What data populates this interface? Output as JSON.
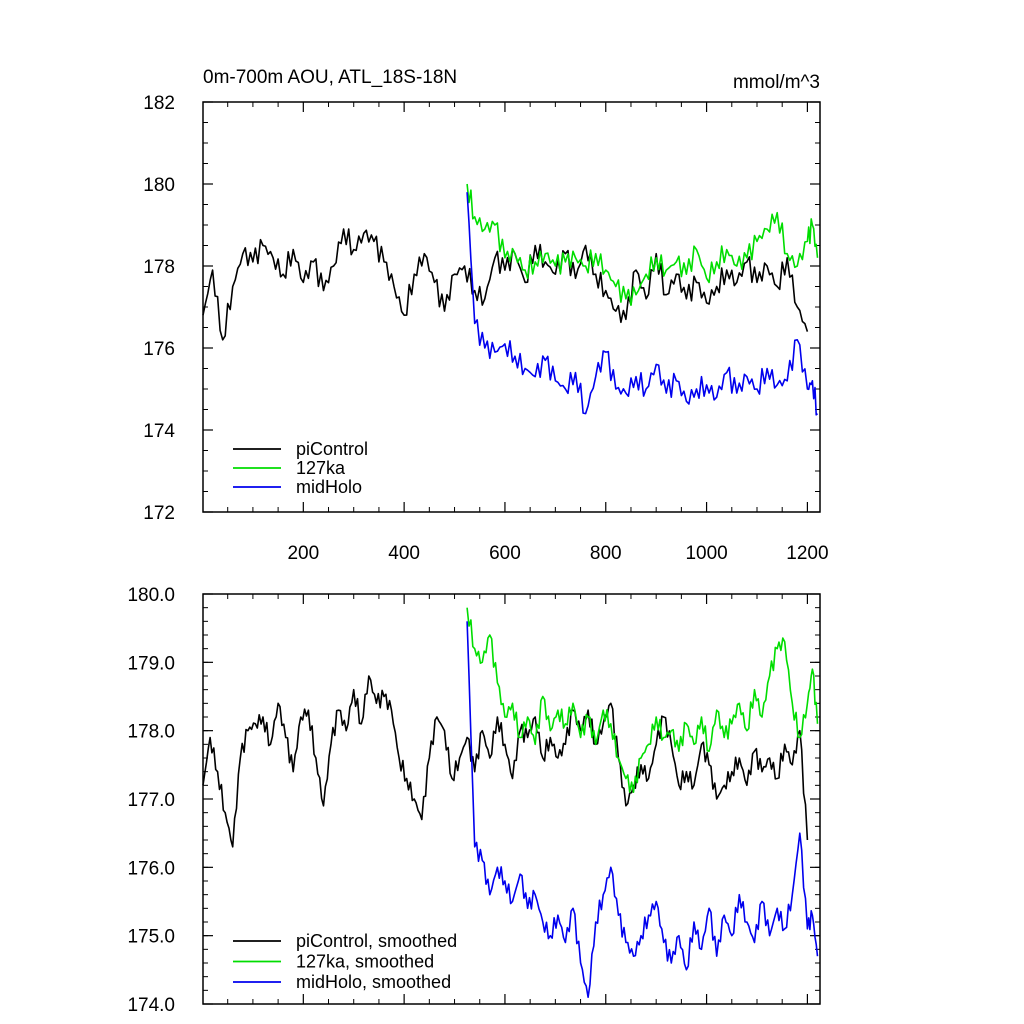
{
  "chart_data": [
    {
      "type": "line",
      "title": "0m-700m AOU, ATL_18S-18N",
      "units": "mmol/m^3",
      "xlabel": "",
      "ylabel": "",
      "xlim": [
        1,
        1225
      ],
      "ylim": [
        172,
        182
      ],
      "x_ticks": [
        200,
        400,
        600,
        800,
        1000,
        1200
      ],
      "x_tick_labels": [
        "200",
        "400",
        "600",
        "800",
        "1000",
        "1200"
      ],
      "y_ticks": [
        172,
        174,
        176,
        178,
        180,
        182
      ],
      "y_tick_labels": [
        "172",
        "174",
        "176",
        "178",
        "180",
        "182"
      ],
      "legend_position": "bottom-left",
      "series": [
        {
          "name": "piControl",
          "color": "#000000",
          "x": [
            1,
            20,
            40,
            60,
            80,
            100,
            120,
            140,
            160,
            180,
            200,
            220,
            240,
            260,
            280,
            300,
            320,
            340,
            360,
            380,
            400,
            420,
            440,
            460,
            480,
            500,
            520,
            540,
            560,
            580,
            600,
            620,
            640,
            660,
            680,
            700,
            720,
            740,
            760,
            780,
            800,
            820,
            840,
            860,
            880,
            900,
            920,
            940,
            960,
            980,
            1000,
            1020,
            1040,
            1060,
            1080,
            1100,
            1120,
            1140,
            1160,
            1180,
            1200
          ],
          "y": [
            176.8,
            177.9,
            176.2,
            177.5,
            178.3,
            178.1,
            178.5,
            178.2,
            177.8,
            178.4,
            177.6,
            178.1,
            177.4,
            178.0,
            178.9,
            178.4,
            178.8,
            178.6,
            178.1,
            177.5,
            176.8,
            177.8,
            178.3,
            177.6,
            176.9,
            177.8,
            178.0,
            177.4,
            177.2,
            178.2,
            177.9,
            178.3,
            177.6,
            178.5,
            178.1,
            177.8,
            178.3,
            177.7,
            178.5,
            177.8,
            177.4,
            176.9,
            176.7,
            177.9,
            177.2,
            178.3,
            177.3,
            177.8,
            177.2,
            177.6,
            177.1,
            177.5,
            177.9,
            177.6,
            178.1,
            177.6,
            178.0,
            177.5,
            178.2,
            177.0,
            176.4
          ]
        },
        {
          "name": "127ka",
          "color": "#00dd00",
          "x": [
            525,
            540,
            560,
            580,
            600,
            620,
            640,
            660,
            680,
            700,
            720,
            740,
            760,
            780,
            800,
            820,
            840,
            860,
            880,
            900,
            920,
            940,
            960,
            980,
            1000,
            1020,
            1040,
            1060,
            1080,
            1100,
            1120,
            1140,
            1160,
            1180,
            1200,
            1210,
            1220
          ],
          "y": [
            180.0,
            179.2,
            178.9,
            179.0,
            178.2,
            178.3,
            177.9,
            178.1,
            178.3,
            178.0,
            178.1,
            178.2,
            178.0,
            178.3,
            177.9,
            177.5,
            177.2,
            177.3,
            177.8,
            178.2,
            177.9,
            178.1,
            177.8,
            178.4,
            177.7,
            178.1,
            178.4,
            178.0,
            178.2,
            178.6,
            178.9,
            179.3,
            178.3,
            178.0,
            178.6,
            179.0,
            178.2
          ]
        },
        {
          "name": "midHolo",
          "color": "#0000ee",
          "x": [
            525,
            540,
            560,
            580,
            600,
            620,
            640,
            660,
            680,
            700,
            720,
            740,
            760,
            780,
            800,
            820,
            840,
            860,
            880,
            900,
            920,
            940,
            960,
            980,
            1000,
            1020,
            1040,
            1060,
            1080,
            1100,
            1120,
            1140,
            1160,
            1180,
            1200,
            1210,
            1220
          ],
          "y": [
            179.8,
            176.6,
            176.0,
            175.9,
            176.1,
            175.8,
            175.5,
            175.3,
            175.7,
            175.2,
            175.0,
            175.4,
            174.4,
            175.3,
            175.9,
            175.0,
            174.9,
            175.3,
            175.0,
            175.6,
            174.9,
            175.2,
            174.7,
            175.0,
            175.1,
            174.8,
            175.4,
            174.9,
            175.3,
            175.0,
            175.5,
            175.1,
            175.2,
            176.2,
            175.0,
            175.2,
            174.4
          ]
        }
      ]
    },
    {
      "type": "line",
      "title": "",
      "xlabel": "",
      "ylabel": "",
      "xlim": [
        1,
        1225
      ],
      "ylim": [
        174.0,
        180.0
      ],
      "x_ticks": [
        200,
        400,
        600,
        800,
        1000,
        1200
      ],
      "y_ticks": [
        174,
        175,
        176,
        177,
        178,
        179,
        180
      ],
      "y_tick_labels": [
        "174.0",
        "175.0",
        "176.0",
        "177.0",
        "178.0",
        "179.0",
        "180.0"
      ],
      "legend_position": "bottom-left",
      "series": [
        {
          "name": "piControl, smoothed",
          "color": "#000000",
          "x": [
            1,
            15,
            30,
            45,
            60,
            75,
            90,
            105,
            120,
            135,
            150,
            165,
            180,
            195,
            210,
            225,
            240,
            255,
            270,
            285,
            300,
            315,
            330,
            345,
            360,
            375,
            390,
            405,
            420,
            435,
            450,
            465,
            480,
            495,
            510,
            525,
            540,
            555,
            570,
            585,
            600,
            615,
            630,
            645,
            660,
            675,
            690,
            705,
            720,
            735,
            750,
            765,
            780,
            795,
            810,
            825,
            840,
            855,
            870,
            885,
            900,
            915,
            930,
            945,
            960,
            975,
            990,
            1005,
            1020,
            1035,
            1050,
            1065,
            1080,
            1095,
            1110,
            1125,
            1140,
            1155,
            1170,
            1185,
            1200
          ],
          "y": [
            177.2,
            177.9,
            177.4,
            176.8,
            176.3,
            177.6,
            178.0,
            178.1,
            178.2,
            177.8,
            178.4,
            177.9,
            177.4,
            178.2,
            178.3,
            177.6,
            176.9,
            177.8,
            178.3,
            178.0,
            178.6,
            178.1,
            178.8,
            178.4,
            178.5,
            178.3,
            177.6,
            177.3,
            177.0,
            176.7,
            177.6,
            178.2,
            178.0,
            177.3,
            177.6,
            177.9,
            177.4,
            178.0,
            177.6,
            178.2,
            177.8,
            177.3,
            178.0,
            177.9,
            178.2,
            177.6,
            177.9,
            177.6,
            177.8,
            178.3,
            178.0,
            178.3,
            177.8,
            178.1,
            178.4,
            177.6,
            176.9,
            177.2,
            177.5,
            177.3,
            177.8,
            178.2,
            177.8,
            177.2,
            177.4,
            177.2,
            177.8,
            177.5,
            177.0,
            177.2,
            177.4,
            177.6,
            177.2,
            177.7,
            177.4,
            177.6,
            177.3,
            177.8,
            177.5,
            178.0,
            176.4
          ]
        },
        {
          "name": "127ka, smoothed",
          "color": "#00dd00",
          "x": [
            525,
            540,
            555,
            570,
            585,
            600,
            615,
            630,
            645,
            660,
            675,
            690,
            705,
            720,
            735,
            750,
            765,
            780,
            795,
            810,
            825,
            840,
            855,
            870,
            885,
            900,
            915,
            930,
            945,
            960,
            975,
            990,
            1005,
            1020,
            1035,
            1050,
            1065,
            1080,
            1095,
            1110,
            1125,
            1140,
            1155,
            1170,
            1185,
            1200,
            1210,
            1220
          ],
          "y": [
            179.8,
            179.2,
            179.0,
            179.4,
            178.7,
            178.2,
            178.4,
            177.9,
            178.2,
            177.8,
            178.5,
            178.0,
            178.3,
            178.1,
            178.4,
            177.9,
            178.2,
            177.8,
            178.3,
            178.1,
            177.6,
            177.3,
            177.1,
            177.6,
            177.8,
            178.2,
            177.9,
            178.0,
            177.7,
            178.1,
            177.8,
            178.2,
            177.7,
            178.3,
            177.9,
            178.1,
            178.4,
            178.0,
            178.6,
            178.2,
            178.8,
            179.2,
            179.3,
            178.4,
            177.9,
            178.4,
            178.9,
            178.1
          ]
        },
        {
          "name": "midHolo, smoothed",
          "color": "#0000ee",
          "x": [
            525,
            540,
            555,
            570,
            585,
            600,
            615,
            630,
            645,
            660,
            675,
            690,
            705,
            720,
            735,
            750,
            765,
            780,
            795,
            810,
            825,
            840,
            855,
            870,
            885,
            900,
            915,
            930,
            945,
            960,
            975,
            990,
            1005,
            1020,
            1035,
            1050,
            1065,
            1080,
            1095,
            1110,
            1125,
            1140,
            1155,
            1170,
            1185,
            1200,
            1210,
            1220
          ],
          "y": [
            179.6,
            176.3,
            176.1,
            175.6,
            176.0,
            175.8,
            175.5,
            175.9,
            175.4,
            175.6,
            175.2,
            175.0,
            175.3,
            174.9,
            175.4,
            174.6,
            174.1,
            175.2,
            175.6,
            176.0,
            175.3,
            174.9,
            174.7,
            175.0,
            175.3,
            175.5,
            174.9,
            174.6,
            175.0,
            174.5,
            175.2,
            174.8,
            175.4,
            174.7,
            175.3,
            175.0,
            175.6,
            175.2,
            174.9,
            175.5,
            175.0,
            175.4,
            175.1,
            175.6,
            176.5,
            175.1,
            175.3,
            174.7
          ]
        }
      ]
    }
  ]
}
